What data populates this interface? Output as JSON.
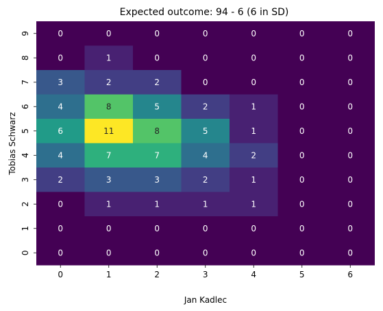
{
  "chart_data": {
    "type": "heatmap",
    "title": "Expected outcome: 94 - 6 (6 in SD)",
    "xlabel": "Jan Kadlec",
    "ylabel": "Tobias Schwarz",
    "x_categories": [
      "0",
      "1",
      "2",
      "3",
      "4",
      "5",
      "6"
    ],
    "y_categories": [
      "9",
      "8",
      "7",
      "6",
      "5",
      "4",
      "3",
      "2",
      "1",
      "0"
    ],
    "values": [
      [
        0,
        0,
        0,
        0,
        0,
        0,
        0
      ],
      [
        0,
        1,
        0,
        0,
        0,
        0,
        0
      ],
      [
        3,
        2,
        2,
        0,
        0,
        0,
        0
      ],
      [
        4,
        8,
        5,
        2,
        1,
        0,
        0
      ],
      [
        6,
        11,
        8,
        5,
        1,
        0,
        0
      ],
      [
        4,
        7,
        7,
        4,
        2,
        0,
        0
      ],
      [
        2,
        3,
        3,
        2,
        1,
        0,
        0
      ],
      [
        0,
        1,
        1,
        1,
        1,
        0,
        0
      ],
      [
        0,
        0,
        0,
        0,
        0,
        0,
        0
      ],
      [
        0,
        0,
        0,
        0,
        0,
        0,
        0
      ]
    ],
    "vmin": 0,
    "vmax": 11,
    "colormap": "viridis",
    "grid": false,
    "legend": "none"
  }
}
